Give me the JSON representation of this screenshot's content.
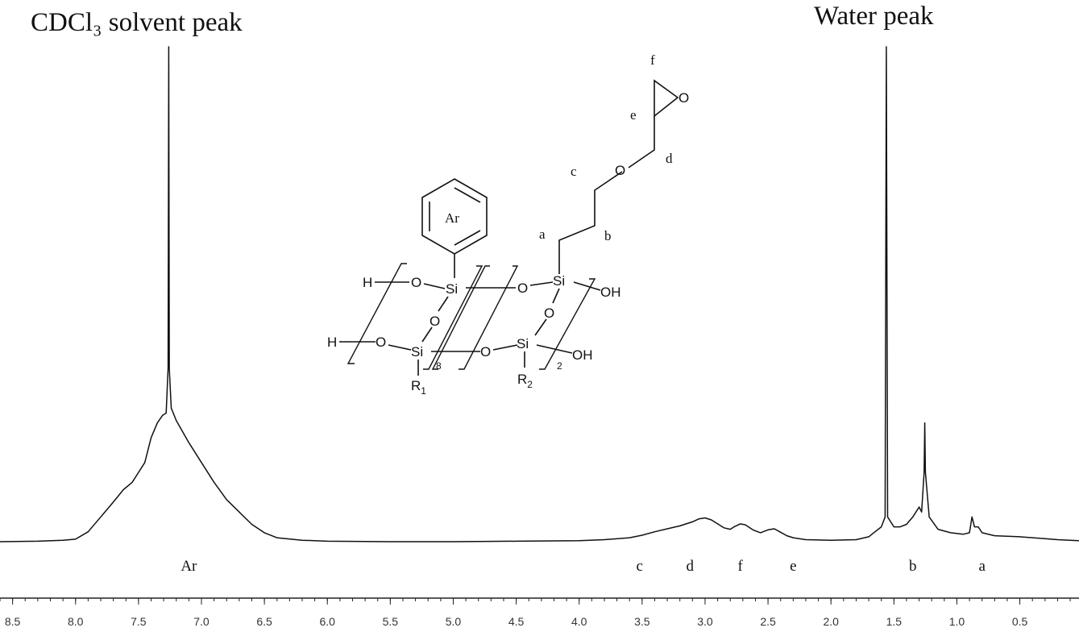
{
  "chart_data": {
    "type": "line",
    "title": "",
    "xlabel": "",
    "ylabel": "",
    "xlim": [
      8.6,
      0.03
    ],
    "ylim": [
      0,
      1
    ],
    "x_reversed": true,
    "x_ticks": [
      "8.5",
      "8.0",
      "7.5",
      "7.0",
      "6.5",
      "6.0",
      "5.5",
      "5.0",
      "4.5",
      "4.0",
      "3.5",
      "3.0",
      "2.5",
      "2.0",
      "1.5",
      "1.0",
      "0.5"
    ],
    "annotations": {
      "solvent": "CDCl₃ solvent  peak",
      "water": "Water peak"
    },
    "peak_assignments": [
      {
        "label": "Ar",
        "ppm": 7.1
      },
      {
        "label": "c",
        "ppm": 3.52
      },
      {
        "label": "d",
        "ppm": 3.12
      },
      {
        "label": "f",
        "ppm": 2.72
      },
      {
        "label": "e",
        "ppm": 2.3
      },
      {
        "label": "b",
        "ppm": 1.35
      },
      {
        "label": "a",
        "ppm": 0.8
      }
    ],
    "series": [
      {
        "points": [
          [
            8.6,
            0.0
          ],
          [
            8.3,
            0.001
          ],
          [
            8.1,
            0.003
          ],
          [
            8.0,
            0.005
          ],
          [
            7.9,
            0.02
          ],
          [
            7.8,
            0.05
          ],
          [
            7.7,
            0.08
          ],
          [
            7.62,
            0.105
          ],
          [
            7.55,
            0.12
          ],
          [
            7.5,
            0.14
          ],
          [
            7.45,
            0.16
          ],
          [
            7.4,
            0.21
          ],
          [
            7.35,
            0.24
          ],
          [
            7.31,
            0.255
          ],
          [
            7.28,
            0.26
          ],
          [
            7.265,
            0.35
          ],
          [
            7.26,
            1.0
          ],
          [
            7.255,
            0.35
          ],
          [
            7.24,
            0.27
          ],
          [
            7.2,
            0.245
          ],
          [
            7.1,
            0.2
          ],
          [
            7.0,
            0.16
          ],
          [
            6.9,
            0.12
          ],
          [
            6.8,
            0.085
          ],
          [
            6.7,
            0.06
          ],
          [
            6.6,
            0.035
          ],
          [
            6.5,
            0.018
          ],
          [
            6.4,
            0.008
          ],
          [
            6.2,
            0.003
          ],
          [
            6.0,
            0.001
          ],
          [
            5.5,
            0.0
          ],
          [
            5.0,
            0.0
          ],
          [
            4.5,
            0.001
          ],
          [
            4.0,
            0.002
          ],
          [
            3.8,
            0.004
          ],
          [
            3.6,
            0.008
          ],
          [
            3.5,
            0.013
          ],
          [
            3.4,
            0.02
          ],
          [
            3.3,
            0.026
          ],
          [
            3.2,
            0.032
          ],
          [
            3.1,
            0.04
          ],
          [
            3.05,
            0.046
          ],
          [
            3.0,
            0.048
          ],
          [
            2.95,
            0.044
          ],
          [
            2.9,
            0.036
          ],
          [
            2.85,
            0.028
          ],
          [
            2.8,
            0.025
          ],
          [
            2.77,
            0.03
          ],
          [
            2.72,
            0.036
          ],
          [
            2.68,
            0.034
          ],
          [
            2.62,
            0.024
          ],
          [
            2.56,
            0.018
          ],
          [
            2.5,
            0.024
          ],
          [
            2.45,
            0.026
          ],
          [
            2.4,
            0.019
          ],
          [
            2.35,
            0.012
          ],
          [
            2.3,
            0.008
          ],
          [
            2.2,
            0.004
          ],
          [
            2.0,
            0.003
          ],
          [
            1.8,
            0.004
          ],
          [
            1.7,
            0.01
          ],
          [
            1.65,
            0.02
          ],
          [
            1.6,
            0.03
          ],
          [
            1.57,
            0.05
          ],
          [
            1.56,
            1.0
          ],
          [
            1.55,
            0.05
          ],
          [
            1.5,
            0.03
          ],
          [
            1.45,
            0.03
          ],
          [
            1.4,
            0.035
          ],
          [
            1.35,
            0.05
          ],
          [
            1.3,
            0.07
          ],
          [
            1.28,
            0.06
          ],
          [
            1.26,
            0.14
          ],
          [
            1.255,
            0.24
          ],
          [
            1.25,
            0.14
          ],
          [
            1.22,
            0.05
          ],
          [
            1.15,
            0.025
          ],
          [
            1.05,
            0.018
          ],
          [
            0.95,
            0.015
          ],
          [
            0.9,
            0.018
          ],
          [
            0.88,
            0.05
          ],
          [
            0.86,
            0.03
          ],
          [
            0.83,
            0.03
          ],
          [
            0.8,
            0.018
          ],
          [
            0.7,
            0.012
          ],
          [
            0.5,
            0.01
          ],
          [
            0.3,
            0.006
          ],
          [
            0.2,
            0.004
          ],
          [
            0.1,
            0.003
          ],
          [
            0.03,
            0.002
          ]
        ]
      }
    ]
  },
  "structure": {
    "ring": "Ar",
    "atoms": {
      "si": "Si",
      "o": "O",
      "h": "H",
      "oh": "OH",
      "r": "R",
      "r1_sub": "1",
      "r2_sub": "2",
      "n8": "8",
      "n2": "2"
    },
    "chain_labels": {
      "a": "a",
      "b": "b",
      "c": "c",
      "d": "d",
      "e": "e",
      "f": "f"
    }
  }
}
